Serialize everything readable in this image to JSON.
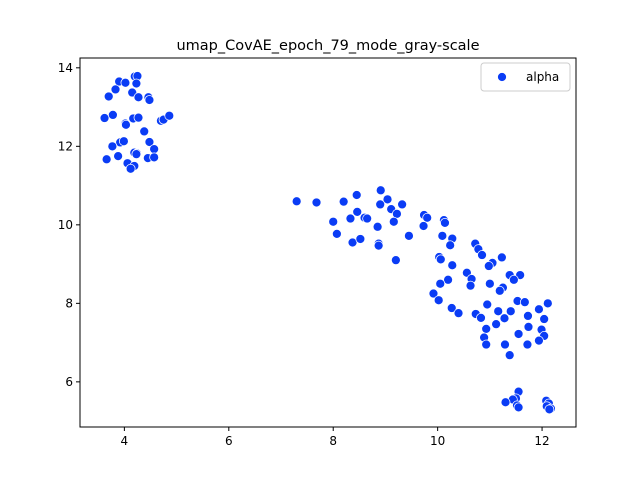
{
  "chart_data": {
    "type": "scatter",
    "title": "umap_CovAE_epoch_79_mode_gray-scale",
    "xlabel": "",
    "ylabel": "",
    "xlim": [
      3.15,
      12.65
    ],
    "ylim": [
      4.85,
      14.25
    ],
    "xticks": [
      4,
      6,
      8,
      10,
      12
    ],
    "yticks": [
      6,
      8,
      10,
      12,
      14
    ],
    "xtick_labels": [
      "4",
      "6",
      "8",
      "10",
      "12"
    ],
    "ytick_labels": [
      "6",
      "8",
      "10",
      "12",
      "14"
    ],
    "grid": false,
    "legend_position": "top-right",
    "series": [
      {
        "name": "alpha",
        "color": "#0a3cf5",
        "points": [
          [
            3.9,
            13.65
          ],
          [
            4.02,
            13.62
          ],
          [
            4.2,
            13.78
          ],
          [
            4.25,
            13.79
          ],
          [
            4.23,
            13.6
          ],
          [
            3.83,
            13.45
          ],
          [
            3.7,
            13.27
          ],
          [
            4.15,
            13.37
          ],
          [
            4.27,
            13.25
          ],
          [
            4.46,
            13.25
          ],
          [
            4.48,
            13.18
          ],
          [
            3.62,
            12.72
          ],
          [
            3.78,
            12.8
          ],
          [
            4.02,
            12.58
          ],
          [
            4.03,
            12.55
          ],
          [
            4.17,
            12.71
          ],
          [
            4.27,
            12.73
          ],
          [
            4.7,
            12.65
          ],
          [
            4.75,
            12.68
          ],
          [
            4.86,
            12.78
          ],
          [
            4.38,
            12.38
          ],
          [
            3.92,
            12.1
          ],
          [
            3.99,
            12.13
          ],
          [
            4.48,
            12.11
          ],
          [
            3.77,
            12.0
          ],
          [
            4.57,
            11.93
          ],
          [
            4.19,
            11.84
          ],
          [
            4.24,
            11.82
          ],
          [
            4.23,
            11.8
          ],
          [
            3.88,
            11.75
          ],
          [
            4.45,
            11.7
          ],
          [
            4.57,
            11.72
          ],
          [
            3.66,
            11.67
          ],
          [
            4.06,
            11.57
          ],
          [
            4.19,
            11.5
          ],
          [
            4.12,
            11.43
          ],
          [
            7.3,
            10.6
          ],
          [
            7.68,
            10.57
          ],
          [
            8.2,
            10.59
          ],
          [
            8.45,
            10.76
          ],
          [
            8.91,
            10.88
          ],
          [
            9.04,
            10.65
          ],
          [
            8.9,
            10.52
          ],
          [
            9.32,
            10.52
          ],
          [
            8.46,
            10.33
          ],
          [
            9.11,
            10.4
          ],
          [
            9.22,
            10.28
          ],
          [
            8.33,
            10.16
          ],
          [
            8.6,
            10.18
          ],
          [
            8.65,
            10.16
          ],
          [
            8.0,
            10.08
          ],
          [
            9.16,
            10.08
          ],
          [
            9.74,
            10.25
          ],
          [
            9.8,
            10.18
          ],
          [
            10.12,
            10.12
          ],
          [
            10.14,
            10.05
          ],
          [
            8.85,
            9.95
          ],
          [
            9.73,
            9.97
          ],
          [
            8.07,
            9.77
          ],
          [
            9.45,
            9.72
          ],
          [
            10.09,
            9.72
          ],
          [
            8.37,
            9.55
          ],
          [
            8.52,
            9.64
          ],
          [
            8.87,
            9.52
          ],
          [
            8.87,
            9.47
          ],
          [
            10.28,
            9.65
          ],
          [
            10.24,
            9.48
          ],
          [
            10.72,
            9.52
          ],
          [
            10.78,
            9.38
          ],
          [
            10.85,
            9.23
          ],
          [
            9.2,
            9.1
          ],
          [
            10.03,
            9.18
          ],
          [
            10.06,
            9.12
          ],
          [
            11.05,
            9.03
          ],
          [
            11.23,
            9.17
          ],
          [
            10.98,
            8.95
          ],
          [
            10.28,
            8.97
          ],
          [
            10.56,
            8.78
          ],
          [
            10.65,
            8.62
          ],
          [
            10.63,
            8.45
          ],
          [
            11.38,
            8.72
          ],
          [
            11.58,
            8.72
          ],
          [
            11.46,
            8.6
          ],
          [
            10.2,
            8.6
          ],
          [
            10.05,
            8.5
          ],
          [
            11.0,
            8.5
          ],
          [
            11.25,
            8.4
          ],
          [
            11.19,
            8.32
          ],
          [
            9.92,
            8.25
          ],
          [
            10.02,
            8.08
          ],
          [
            11.53,
            8.06
          ],
          [
            11.67,
            8.03
          ],
          [
            12.11,
            8.0
          ],
          [
            10.95,
            7.97
          ],
          [
            10.27,
            7.88
          ],
          [
            11.94,
            7.85
          ],
          [
            10.4,
            7.75
          ],
          [
            11.16,
            7.8
          ],
          [
            11.4,
            7.8
          ],
          [
            11.73,
            7.68
          ],
          [
            10.73,
            7.73
          ],
          [
            10.83,
            7.63
          ],
          [
            11.28,
            7.62
          ],
          [
            12.04,
            7.6
          ],
          [
            11.12,
            7.47
          ],
          [
            10.93,
            7.35
          ],
          [
            11.74,
            7.4
          ],
          [
            11.99,
            7.33
          ],
          [
            11.55,
            7.22
          ],
          [
            10.89,
            7.13
          ],
          [
            12.04,
            7.17
          ],
          [
            11.94,
            7.05
          ],
          [
            10.93,
            6.95
          ],
          [
            11.29,
            6.95
          ],
          [
            11.72,
            6.95
          ],
          [
            11.38,
            6.68
          ],
          [
            11.55,
            5.75
          ],
          [
            11.5,
            5.58
          ],
          [
            11.44,
            5.55
          ],
          [
            11.3,
            5.48
          ],
          [
            11.52,
            5.4
          ],
          [
            11.55,
            5.35
          ],
          [
            12.08,
            5.52
          ],
          [
            12.13,
            5.45
          ],
          [
            12.09,
            5.38
          ],
          [
            12.17,
            5.32
          ],
          [
            12.14,
            5.3
          ]
        ]
      }
    ]
  }
}
